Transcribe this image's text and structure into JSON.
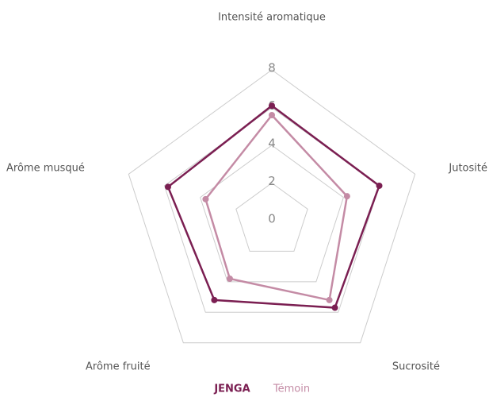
{
  "chart_data": {
    "type": "radar",
    "categories": [
      "Intensité aromatique",
      "Jutosité",
      "Sucrosité",
      "Arôme fruité",
      "Arôme musqué"
    ],
    "series": [
      {
        "name": "JENGA",
        "color": "#7b1f52",
        "values": [
          6.1,
          6.0,
          5.7,
          5.2,
          5.8
        ]
      },
      {
        "name": "Témoin",
        "color": "#c48ba5",
        "values": [
          5.6,
          4.2,
          5.2,
          3.8,
          3.7
        ]
      }
    ],
    "ylim": [
      0,
      8
    ],
    "yticks": [
      0,
      2,
      4,
      6,
      8
    ],
    "grid": true,
    "legend": "bottom"
  }
}
